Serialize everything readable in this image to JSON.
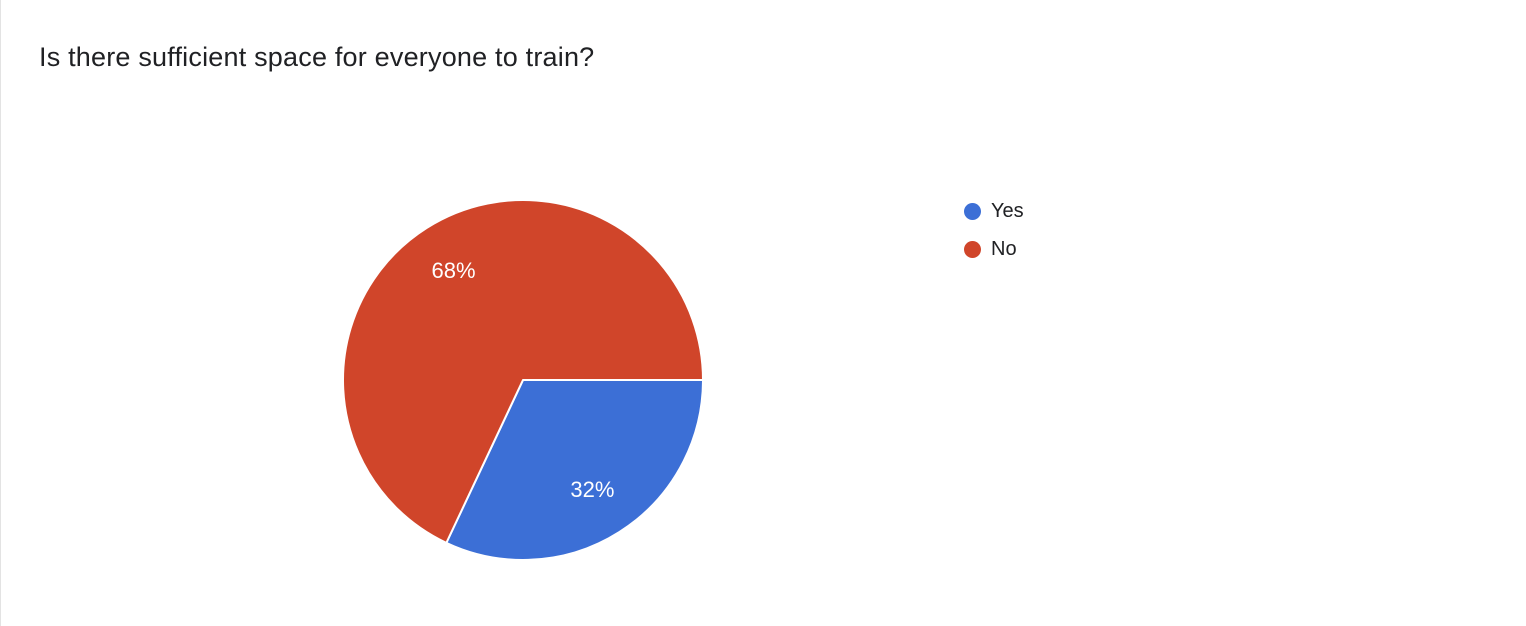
{
  "page": {
    "title": "Is there sufficient space for everyone to train?"
  },
  "chart_data": {
    "type": "pie",
    "title": "Is there sufficient space for everyone to train?",
    "categories": [
      "Yes",
      "No"
    ],
    "values": [
      32,
      68
    ],
    "labels": [
      "32%",
      "68%"
    ],
    "unit": "%",
    "colors": [
      "#3c6fd6",
      "#d0452a"
    ],
    "start_angle_deg": 0,
    "direction": "clockwise",
    "legend_position": "right",
    "slice_border_color": "#ffffff",
    "label_color": "#ffffff"
  },
  "legend": {
    "items": [
      {
        "label": "Yes",
        "color": "#3c6fd6"
      },
      {
        "label": "No",
        "color": "#d0452a"
      }
    ]
  }
}
